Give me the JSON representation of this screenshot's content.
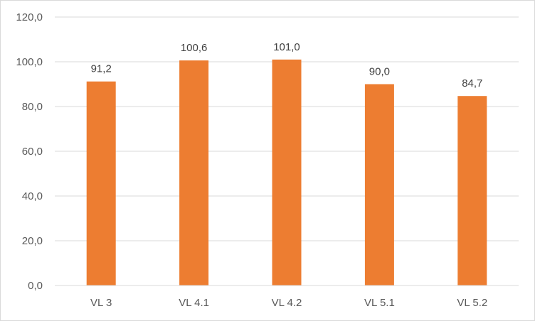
{
  "chart_data": {
    "type": "bar",
    "categories": [
      "VL 3",
      "VL 4.1",
      "VL 4.2",
      "VL 5.1",
      "VL 5.2"
    ],
    "values": [
      91.2,
      100.6,
      101.0,
      90.0,
      84.7
    ],
    "value_labels": [
      "91,2",
      "100,6",
      "101,0",
      "90,0",
      "84,7"
    ],
    "title": "",
    "xlabel": "",
    "ylabel": "",
    "ylim": [
      0,
      120
    ],
    "yticks": [
      0,
      20,
      40,
      60,
      80,
      100,
      120
    ],
    "ytick_labels": [
      "0,0",
      "20,0",
      "40,0",
      "60,0",
      "80,0",
      "100,0",
      "120,0"
    ],
    "grid": true,
    "legend": "none",
    "bar_color": "#ED7D31",
    "grid_color": "#D9D9D9"
  }
}
